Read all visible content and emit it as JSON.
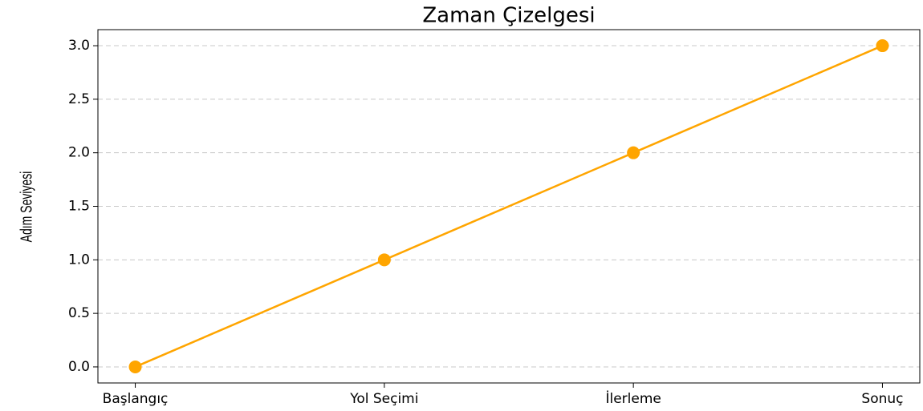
{
  "chart_data": {
    "type": "line",
    "title": "Zaman Çizelgesi",
    "y_label": "Adım Seviyesi",
    "categories": [
      "Başlangıç",
      "Yol Seçimi",
      "İlerleme",
      "Sonuç"
    ],
    "values": [
      0,
      1,
      2,
      3
    ],
    "color": "#ffa500",
    "marker": "circle",
    "ylim": [
      -0.15,
      3.15
    ],
    "yticks": [
      {
        "value": 0,
        "label": "0.0"
      },
      0.5,
      {
        "value": 1,
        "label": "1.0"
      },
      1.5,
      {
        "value": 2,
        "label": "2.0"
      },
      2.5,
      {
        "value": 3,
        "label": "3.0"
      }
    ],
    "grid": true
  }
}
